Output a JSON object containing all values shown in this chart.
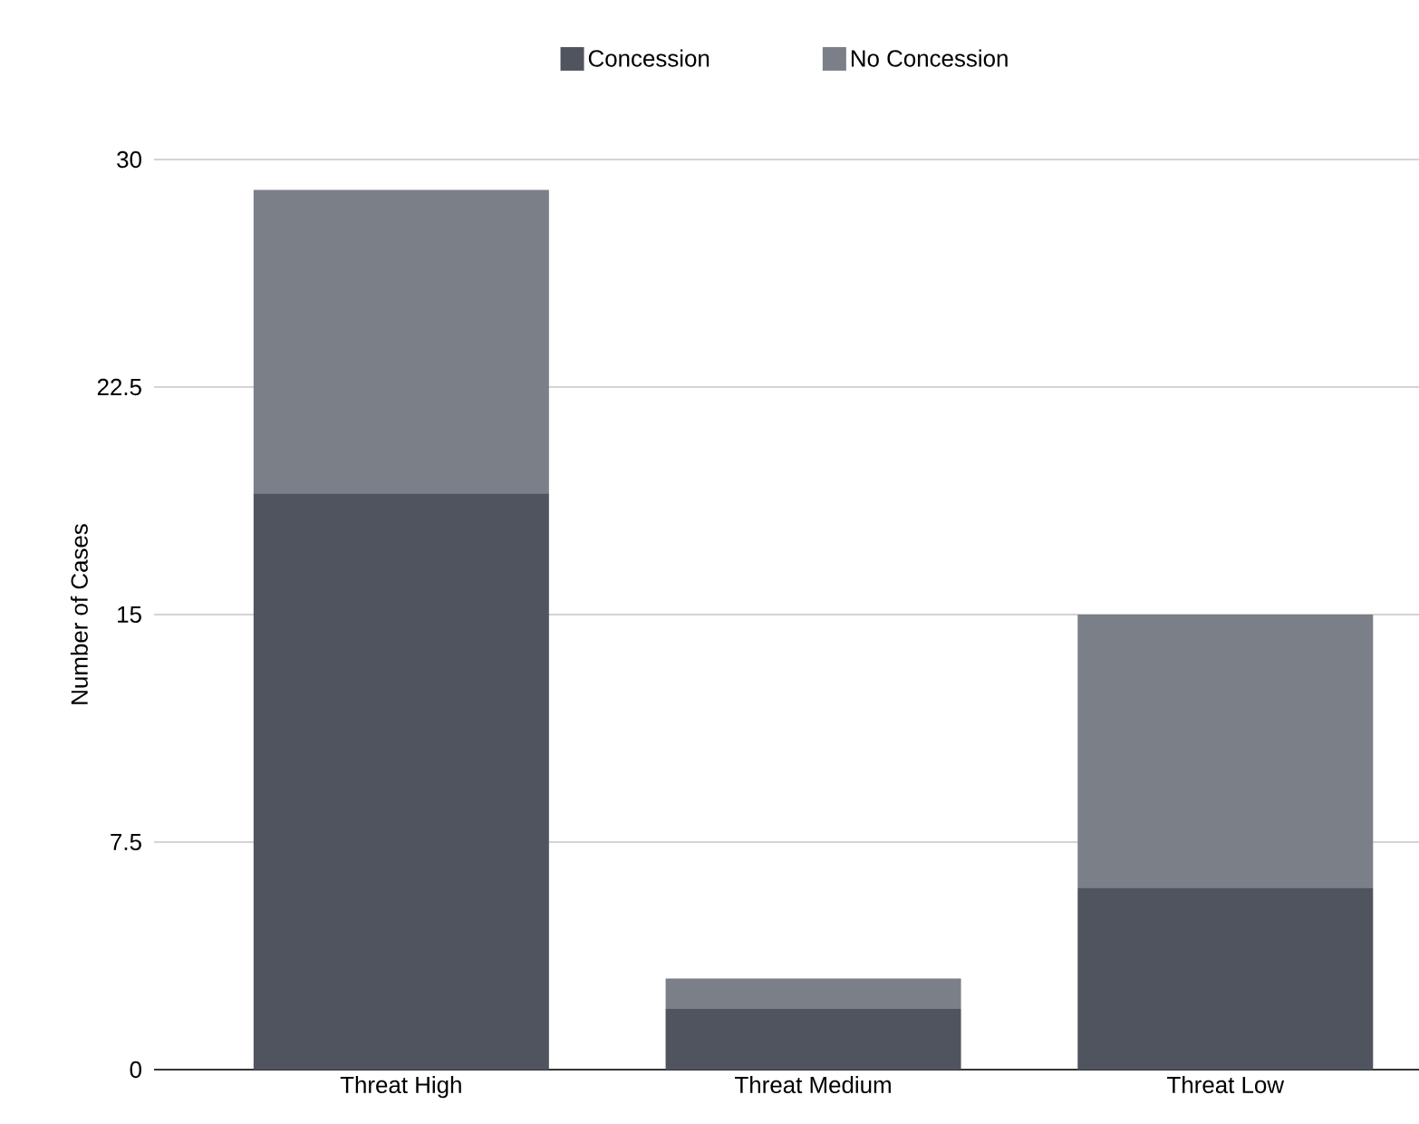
{
  "chart_data": {
    "type": "bar",
    "stacked": true,
    "ylabel": "Number of Cases",
    "categories": [
      "Threat High",
      "Threat Medium",
      "Threat Low"
    ],
    "series": [
      {
        "name": "Concession",
        "color": "#50545e",
        "values": [
          19,
          2,
          6
        ]
      },
      {
        "name": "No Concession",
        "color": "#7b7f88",
        "values": [
          10,
          1,
          9
        ]
      }
    ],
    "ylim": [
      0,
      30
    ],
    "yticks": [
      0,
      7.5,
      15,
      22.5,
      30
    ],
    "grid": "y",
    "legend": "top"
  }
}
